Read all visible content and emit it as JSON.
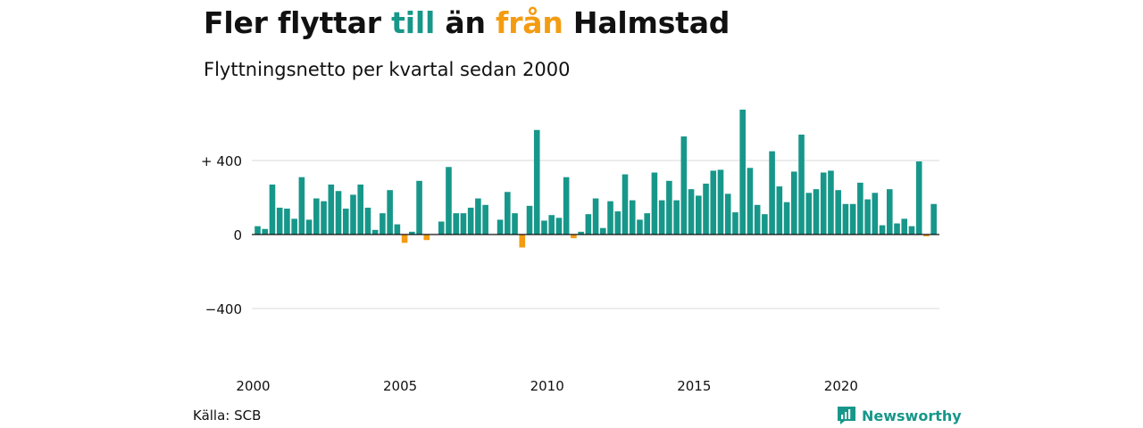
{
  "header": {
    "title_parts": [
      {
        "text": "Fler flyttar ",
        "role": "plain"
      },
      {
        "text": "till",
        "role": "positive"
      },
      {
        "text": " än ",
        "role": "plain"
      },
      {
        "text": "från",
        "role": "negative"
      },
      {
        "text": " Halmstad",
        "role": "plain"
      }
    ],
    "subtitle": "Flyttningsnetto per kvartal sedan 2000"
  },
  "colors": {
    "positive": "#17978a",
    "negative": "#f39c12",
    "text": "#111111",
    "gridline": "#d9d9d9",
    "zero_line": "#111111"
  },
  "chart_data": {
    "type": "bar",
    "title": "",
    "xlabel": "",
    "ylabel": "",
    "x_start": "2000 Q1",
    "ylim": [
      -600,
      680
    ],
    "grid": true,
    "y_ticks": [
      {
        "value": 400,
        "label": "+ 400"
      },
      {
        "value": 0,
        "label": "0"
      },
      {
        "value": -400,
        "label": "−400"
      }
    ],
    "x_ticks": [
      {
        "index": 0,
        "label": "2000"
      },
      {
        "index": 20,
        "label": "2005"
      },
      {
        "index": 40,
        "label": "2010"
      },
      {
        "index": 60,
        "label": "2015"
      },
      {
        "index": 80,
        "label": "2020"
      }
    ],
    "values": [
      45,
      30,
      270,
      145,
      140,
      85,
      310,
      80,
      195,
      180,
      270,
      235,
      140,
      215,
      270,
      145,
      25,
      115,
      240,
      55,
      -45,
      15,
      290,
      -30,
      0,
      70,
      365,
      115,
      115,
      145,
      195,
      160,
      0,
      80,
      230,
      115,
      -70,
      155,
      565,
      75,
      105,
      90,
      310,
      -20,
      15,
      110,
      195,
      35,
      180,
      125,
      325,
      185,
      80,
      115,
      335,
      185,
      290,
      185,
      530,
      245,
      210,
      275,
      345,
      350,
      220,
      120,
      675,
      360,
      160,
      110,
      450,
      260,
      175,
      340,
      540,
      225,
      245,
      335,
      345,
      240,
      165,
      165,
      280,
      190,
      225,
      50,
      245,
      60,
      85,
      45,
      395,
      -10,
      165
    ]
  },
  "footer": {
    "source": "Källa: SCB",
    "logo_text": "Newsworthy",
    "logo_icon": "newsworthy-logo-icon"
  }
}
